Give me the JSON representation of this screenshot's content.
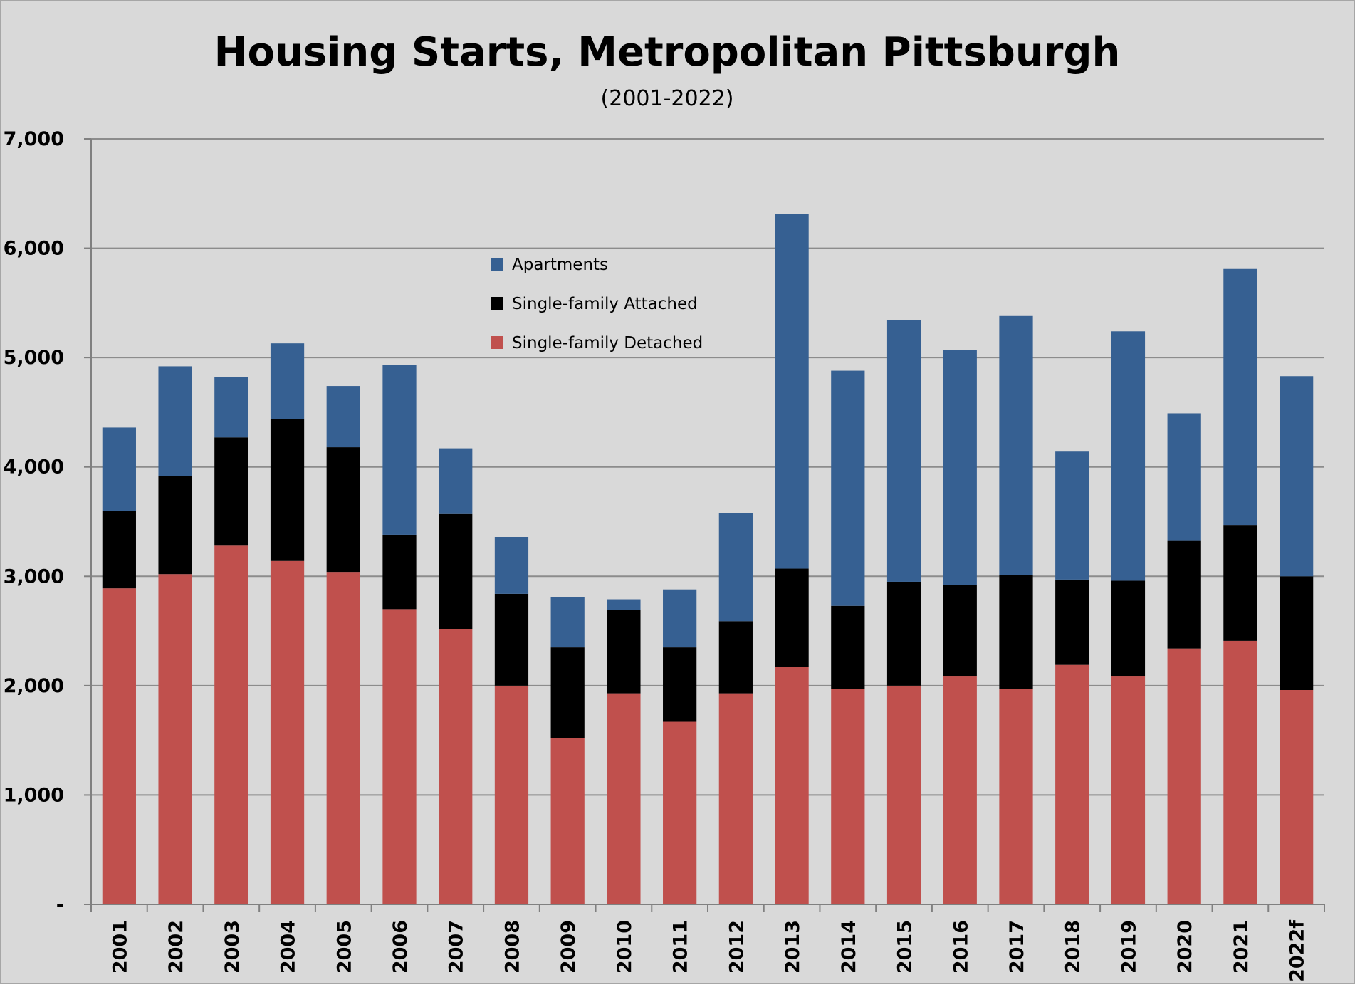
{
  "chart_data": {
    "type": "bar",
    "stacked": true,
    "title": "Housing Starts, Metropolitan Pittsburgh",
    "subtitle": "(2001-2022)",
    "xlabel": "",
    "ylabel": "",
    "ylim": [
      0,
      7000
    ],
    "y_ticks": [
      {
        "value": 0,
        "label": "-"
      },
      {
        "value": 1000,
        "label": "1,000"
      },
      {
        "value": 2000,
        "label": "2,000"
      },
      {
        "value": 3000,
        "label": "3,000"
      },
      {
        "value": 4000,
        "label": "4,000"
      },
      {
        "value": 5000,
        "label": "5,000"
      },
      {
        "value": 6000,
        "label": "6,000"
      },
      {
        "value": 7000,
        "label": "7,000"
      }
    ],
    "grid": true,
    "legend_position": "top-center",
    "categories": [
      "2001",
      "2002",
      "2003",
      "2004",
      "2005",
      "2006",
      "2007",
      "2008",
      "2009",
      "2010",
      "2011",
      "2012",
      "2013",
      "2014",
      "2015",
      "2016",
      "2017",
      "2018",
      "2019",
      "2020",
      "2021",
      "2022f"
    ],
    "series": [
      {
        "name": "Single-family Detached",
        "color": "#c0504d",
        "values": [
          2890,
          3020,
          3280,
          3140,
          3040,
          2700,
          2520,
          2000,
          1520,
          1930,
          1670,
          1930,
          2170,
          1970,
          2000,
          2090,
          1970,
          2190,
          2090,
          2340,
          2410,
          1960
        ]
      },
      {
        "name": "Single-family Attached",
        "color": "#000000",
        "values": [
          710,
          900,
          990,
          1300,
          1140,
          680,
          1050,
          840,
          830,
          760,
          680,
          660,
          900,
          760,
          950,
          830,
          1040,
          780,
          870,
          990,
          1060,
          1040
        ]
      },
      {
        "name": "Apartments",
        "color": "#366092",
        "values": [
          760,
          1000,
          550,
          690,
          560,
          1550,
          600,
          520,
          460,
          100,
          530,
          990,
          3240,
          2150,
          2390,
          2150,
          2370,
          1170,
          2280,
          1160,
          2340,
          1830
        ]
      }
    ],
    "legend_order": [
      "Apartments",
      "Single-family Attached",
      "Single-family Detached"
    ]
  },
  "colors": {
    "background": "#d9d9d9",
    "frame": "#a6a6a6",
    "grid": "#8c8c8c",
    "axis": "#808080",
    "text": "#000000"
  }
}
